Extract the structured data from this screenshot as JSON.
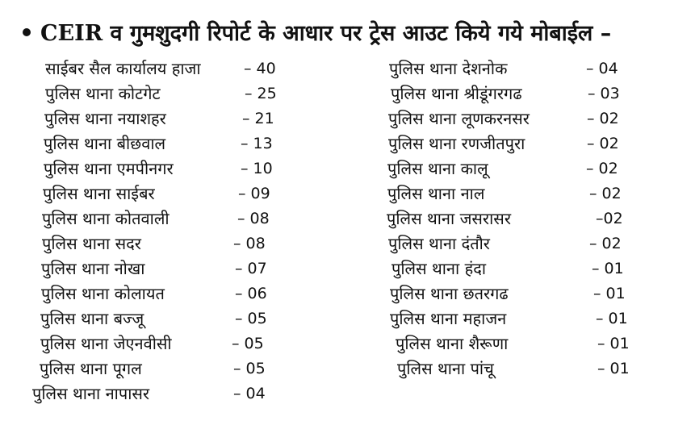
{
  "heading": {
    "prefix": "CEIR",
    "text": "व गुमशुदगी रिपोर्ट के आधार पर ट्रेस आउट किये गये मोबाईल –"
  },
  "left_entries": [
    {
      "name": "साईबर सैल कार्यालय हाजा",
      "count": "– 40"
    },
    {
      "name": "पुलिस थाना  कोटगेट",
      "count": "– 25"
    },
    {
      "name": "पुलिस थाना नयाशहर",
      "count": "– 21"
    },
    {
      "name": "पुलिस थाना बीछवाल",
      "count": "– 13"
    },
    {
      "name": "पुलिस थाना एमपीनगर",
      "count": "– 10"
    },
    {
      "name": "पुलिस थाना साईबर",
      "count": "– 09"
    },
    {
      "name": "पुलिस थाना कोतवाली",
      "count": "– 08"
    },
    {
      "name": "पुलिस थाना सदर",
      "count": "– 08"
    },
    {
      "name": "पुलिस थाना नोखा",
      "count": "– 07"
    },
    {
      "name": "पुलिस थाना कोलायत",
      "count": "– 06"
    },
    {
      "name": "पुलिस थाना बज्जू",
      "count": "– 05"
    },
    {
      "name": "पुलिस थाना जेएनवीसी",
      "count": "– 05"
    },
    {
      "name": "पुलिस थाना पूगल",
      "count": "– 05"
    },
    {
      "name": "पुलिस थाना नापासर",
      "count": "– 04"
    }
  ],
  "right_entries": [
    {
      "name": "पुलिस थाना देशनोक",
      "count": "– 04"
    },
    {
      "name": "पुलिस थाना श्रीडूंगरगढ",
      "count": "– 03"
    },
    {
      "name": "पुलिस थाना लूणकरनसर",
      "count": "– 02"
    },
    {
      "name": "पुलिस थाना रणजीतपुरा",
      "count": "– 02"
    },
    {
      "name": "पुलिस थाना कालू",
      "count": "– 02"
    },
    {
      "name": "पुलिस थाना नाल",
      "count": "– 02"
    },
    {
      "name": "पुलिस थाना जसरासर",
      "count": "–02"
    },
    {
      "name": "पुलिस थाना दंतौर",
      "count": "– 02"
    },
    {
      "name": "पुलिस थाना हंदा",
      "count": "– 01"
    },
    {
      "name": "पुलिस थाना छतरगढ",
      "count": "– 01"
    },
    {
      "name": "पुलिस थाना महाजन",
      "count": "– 01"
    },
    {
      "name": "पुलिस थाना शैरूणा",
      "count": "– 01"
    },
    {
      "name": "पुलिस थाना पांचू",
      "count": "– 01"
    }
  ]
}
